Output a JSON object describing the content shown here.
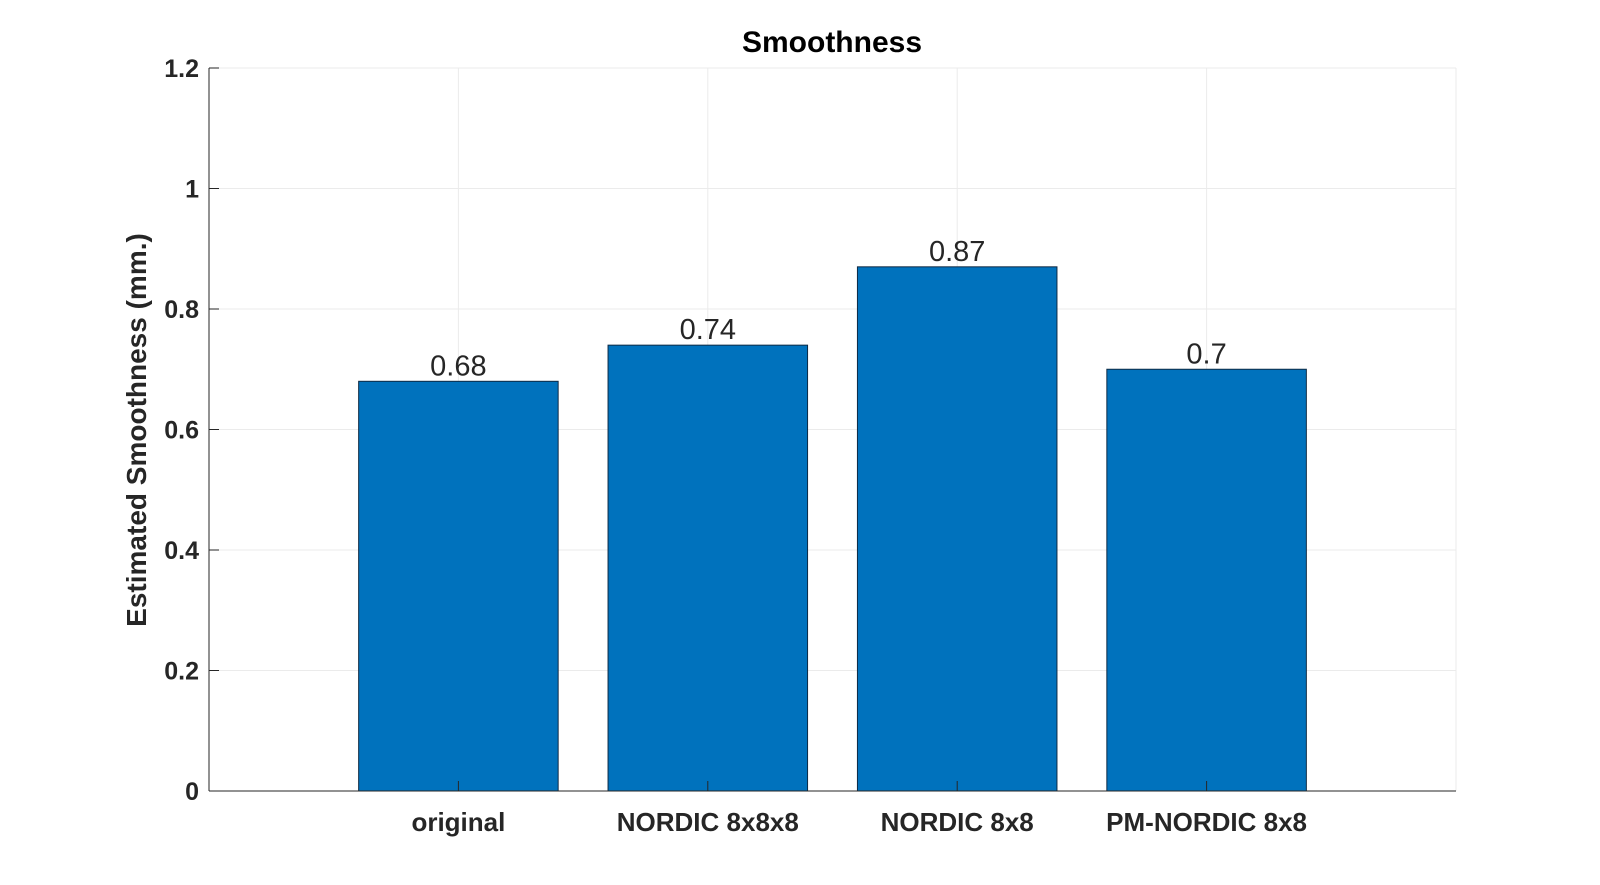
{
  "chart_data": {
    "type": "bar",
    "title": "Smoothness",
    "xlabel": "",
    "ylabel": "Estimated Smoothness (mm.)",
    "categories": [
      "original",
      "NORDIC 8x8x8",
      "NORDIC 8x8",
      "PM-NORDIC 8x8"
    ],
    "values": [
      0.68,
      0.74,
      0.87,
      0.7
    ],
    "data_labels": [
      "0.68",
      "0.74",
      "0.87",
      "0.7"
    ],
    "ylim": [
      0,
      1.2
    ],
    "xlim": [
      0,
      5
    ],
    "yticks": [
      0,
      0.2,
      0.4,
      0.6,
      0.8,
      1,
      1.2
    ],
    "ytick_labels": [
      "0",
      "0.2",
      "0.4",
      "0.6",
      "0.8",
      "1",
      "1.2"
    ],
    "grid": true,
    "bar_color": "#0072bd",
    "bar_edge_color": "#0d2a44"
  }
}
